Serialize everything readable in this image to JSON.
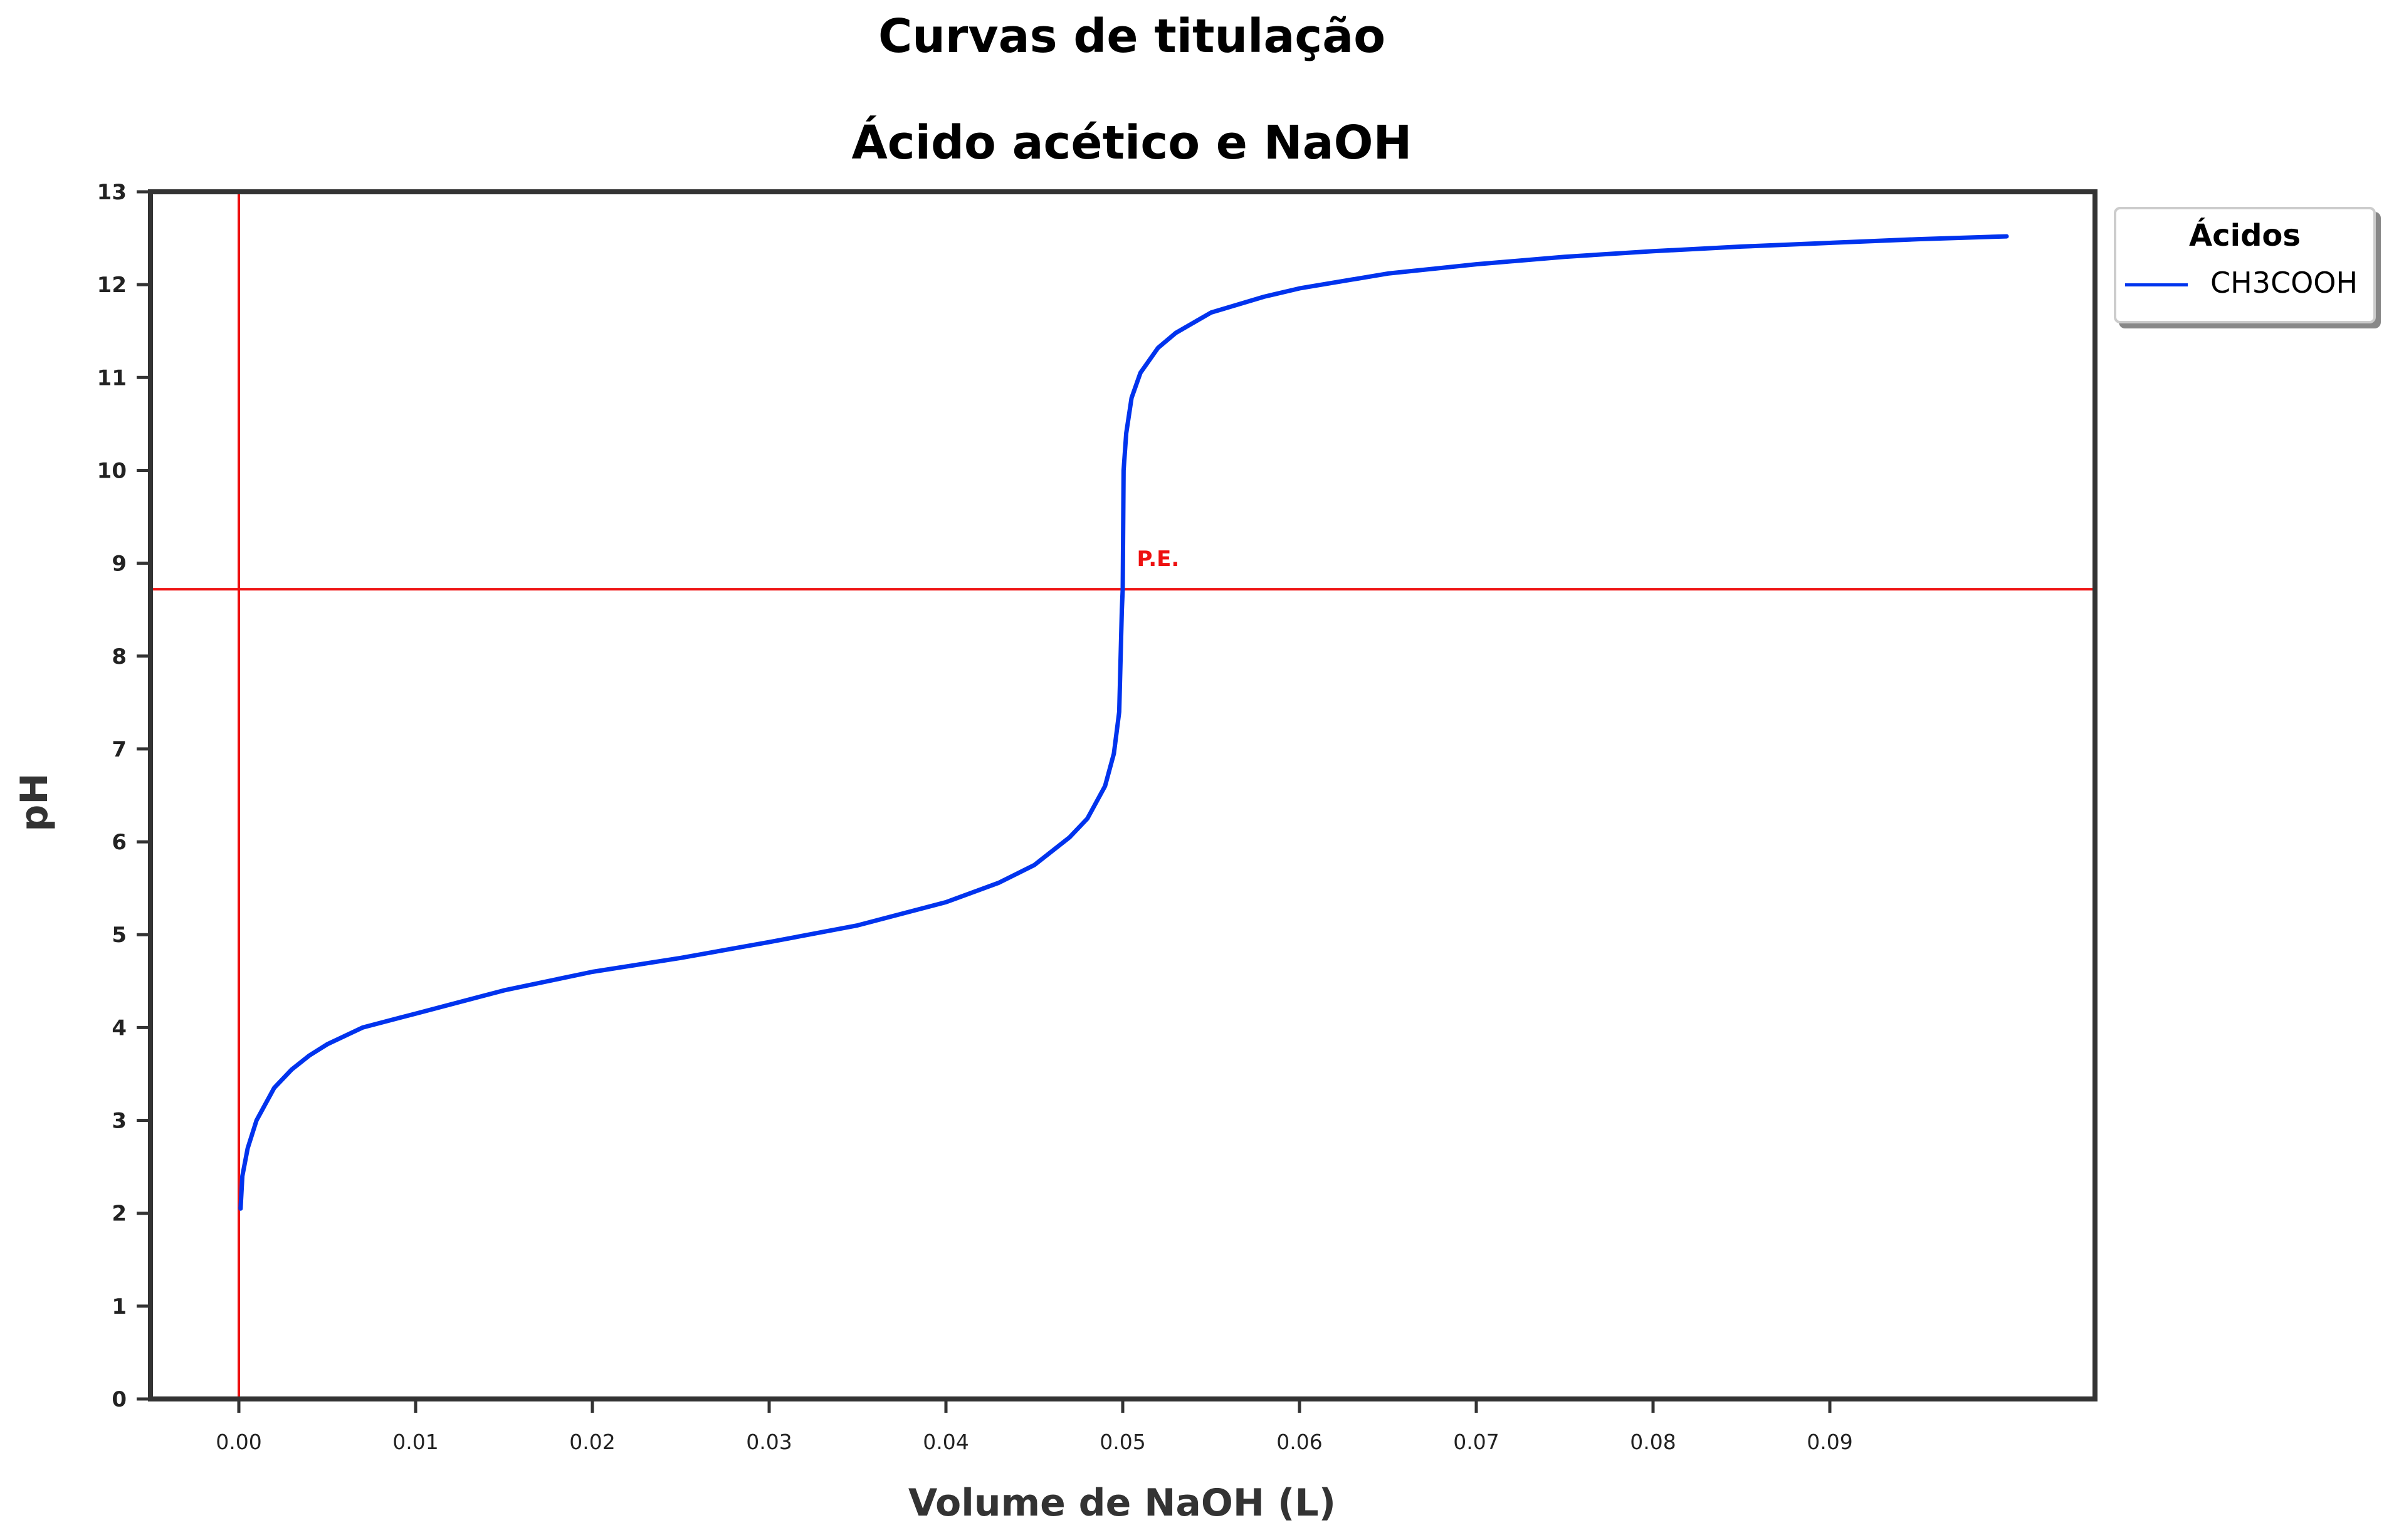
{
  "titles": {
    "line1": "Curvas de titulação",
    "line2": "Ácido acético e NaOH"
  },
  "colors": {
    "curve": "#0033ee",
    "reference": "#ee1111",
    "axis": "#333333"
  },
  "chart_data": {
    "type": "line",
    "title": "Curvas de titulação\nÁcido acético e NaOH",
    "xlabel": "Volume de NaOH (L)",
    "ylabel": "pH",
    "xlim": [
      -0.005,
      0.105
    ],
    "ylim": [
      0,
      13
    ],
    "xticks": [
      "0.00",
      "0.01",
      "0.02",
      "0.03",
      "0.04",
      "0.05",
      "0.06",
      "0.07",
      "0.08",
      "0.09"
    ],
    "yticks": [
      "0",
      "1",
      "2",
      "3",
      "4",
      "5",
      "6",
      "7",
      "8",
      "9",
      "10",
      "11",
      "12",
      "13"
    ],
    "grid": false,
    "legend": {
      "title": "Ácidos",
      "placement": "outside-top-right",
      "entries": [
        "CH3COOH"
      ]
    },
    "series": [
      {
        "name": "CH3COOH",
        "x": [
          0.0001,
          0.0002,
          0.0005,
          0.001,
          0.002,
          0.003,
          0.004,
          0.005,
          0.007,
          0.01,
          0.015,
          0.02,
          0.025,
          0.03,
          0.035,
          0.04,
          0.043,
          0.045,
          0.047,
          0.048,
          0.049,
          0.0495,
          0.0498,
          0.04995,
          0.05,
          0.05005,
          0.0502,
          0.0505,
          0.051,
          0.052,
          0.053,
          0.055,
          0.058,
          0.06,
          0.065,
          0.07,
          0.075,
          0.08,
          0.085,
          0.09,
          0.095,
          0.1
        ],
        "y": [
          2.05,
          2.4,
          2.7,
          3.0,
          3.35,
          3.55,
          3.7,
          3.82,
          4.0,
          4.15,
          4.4,
          4.6,
          4.75,
          4.92,
          5.1,
          5.35,
          5.56,
          5.75,
          6.05,
          6.25,
          6.6,
          6.95,
          7.4,
          8.5,
          8.72,
          10.0,
          10.4,
          10.78,
          11.05,
          11.32,
          11.48,
          11.7,
          11.87,
          11.96,
          12.12,
          12.22,
          12.3,
          12.36,
          12.41,
          12.45,
          12.49,
          12.52
        ]
      }
    ],
    "reference_lines": {
      "vertical_x": 0.0,
      "horizontal_y": 8.72
    },
    "annotations": [
      {
        "text": "P.E.",
        "x": 0.0508,
        "y": 8.97
      }
    ]
  }
}
